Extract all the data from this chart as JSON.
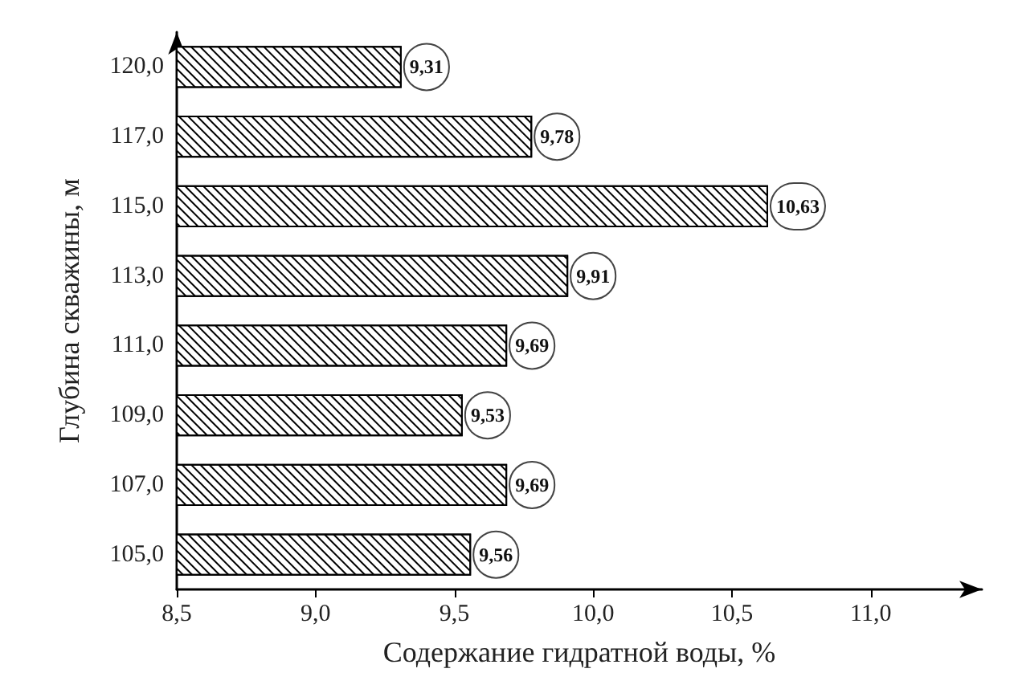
{
  "chart_data": {
    "type": "bar",
    "orientation": "horizontal",
    "xlabel": "Содержание гидратной воды, %",
    "ylabel": "Глубина скважины, м",
    "categories": [
      "120,0",
      "117,0",
      "115,0",
      "113,0",
      "111,0",
      "109,0",
      "107,0",
      "105,0"
    ],
    "values": [
      9.31,
      9.78,
      10.63,
      9.91,
      9.69,
      9.53,
      9.69,
      9.56
    ],
    "value_labels": [
      "9,31",
      "9,78",
      "10,63",
      "9,91",
      "9,69",
      "9,53",
      "9,69",
      "9,56"
    ],
    "color": "#ffffff",
    "xlim": [
      8.5,
      11.4
    ],
    "xticks": [
      {
        "value": 8.5,
        "label": "8,5"
      },
      {
        "value": 9.0,
        "label": "9,0"
      },
      {
        "value": 9.5,
        "label": "9,5"
      },
      {
        "value": 10.0,
        "label": "10,0"
      },
      {
        "value": 10.5,
        "label": "10,5"
      },
      {
        "value": 11.0,
        "label": "11,0"
      }
    ],
    "grid": false
  }
}
